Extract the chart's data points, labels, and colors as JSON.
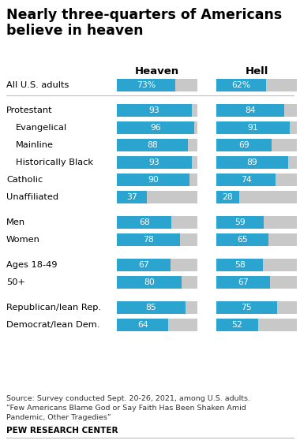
{
  "title_line1": "Nearly three-quarters of Americans",
  "title_line2": "believe in heaven",
  "col_headers": [
    "Heaven",
    "Hell"
  ],
  "categories": [
    {
      "label": "All U.S. adults",
      "indent": 0,
      "heaven": 73,
      "hell": 62,
      "pct": true,
      "spacer": false
    },
    {
      "label": "",
      "indent": 0,
      "heaven": null,
      "hell": null,
      "pct": false,
      "spacer": true
    },
    {
      "label": "Protestant",
      "indent": 0,
      "heaven": 93,
      "hell": 84,
      "pct": false,
      "spacer": false
    },
    {
      "label": "Evangelical",
      "indent": 1,
      "heaven": 96,
      "hell": 91,
      "pct": false,
      "spacer": false
    },
    {
      "label": "Mainline",
      "indent": 1,
      "heaven": 88,
      "hell": 69,
      "pct": false,
      "spacer": false
    },
    {
      "label": "Historically Black",
      "indent": 1,
      "heaven": 93,
      "hell": 89,
      "pct": false,
      "spacer": false
    },
    {
      "label": "Catholic",
      "indent": 0,
      "heaven": 90,
      "hell": 74,
      "pct": false,
      "spacer": false
    },
    {
      "label": "Unaffiliated",
      "indent": 0,
      "heaven": 37,
      "hell": 28,
      "pct": false,
      "spacer": false
    },
    {
      "label": "",
      "indent": 0,
      "heaven": null,
      "hell": null,
      "pct": false,
      "spacer": true
    },
    {
      "label": "Men",
      "indent": 0,
      "heaven": 68,
      "hell": 59,
      "pct": false,
      "spacer": false
    },
    {
      "label": "Women",
      "indent": 0,
      "heaven": 78,
      "hell": 65,
      "pct": false,
      "spacer": false
    },
    {
      "label": "",
      "indent": 0,
      "heaven": null,
      "hell": null,
      "pct": false,
      "spacer": true
    },
    {
      "label": "Ages 18-49",
      "indent": 0,
      "heaven": 67,
      "hell": 58,
      "pct": false,
      "spacer": false
    },
    {
      "label": "50+",
      "indent": 0,
      "heaven": 80,
      "hell": 67,
      "pct": false,
      "spacer": false
    },
    {
      "label": "",
      "indent": 0,
      "heaven": null,
      "hell": null,
      "pct": false,
      "spacer": true
    },
    {
      "label": "Republican/lean Rep.",
      "indent": 0,
      "heaven": 85,
      "hell": 75,
      "pct": false,
      "spacer": false
    },
    {
      "label": "Democrat/lean Dem.",
      "indent": 0,
      "heaven": 64,
      "hell": 52,
      "pct": false,
      "spacer": false
    }
  ],
  "bar_color": "#2ca4d0",
  "bg_color": "#c8c8c8",
  "bar_max": 100,
  "source_text": "Source: Survey conducted Sept. 20-26, 2021, among U.S. adults.\n“Few Americans Blame God or Say Faith Has Been Shaken Amid\nPandemic, Other Tragedies”",
  "footer_text": "PEW RESEARCH CENTER",
  "title_fontsize": 12.5,
  "label_fontsize": 8.2,
  "bar_label_fontsize": 7.8,
  "header_fontsize": 9.5,
  "source_fontsize": 6.8,
  "footer_fontsize": 7.5
}
